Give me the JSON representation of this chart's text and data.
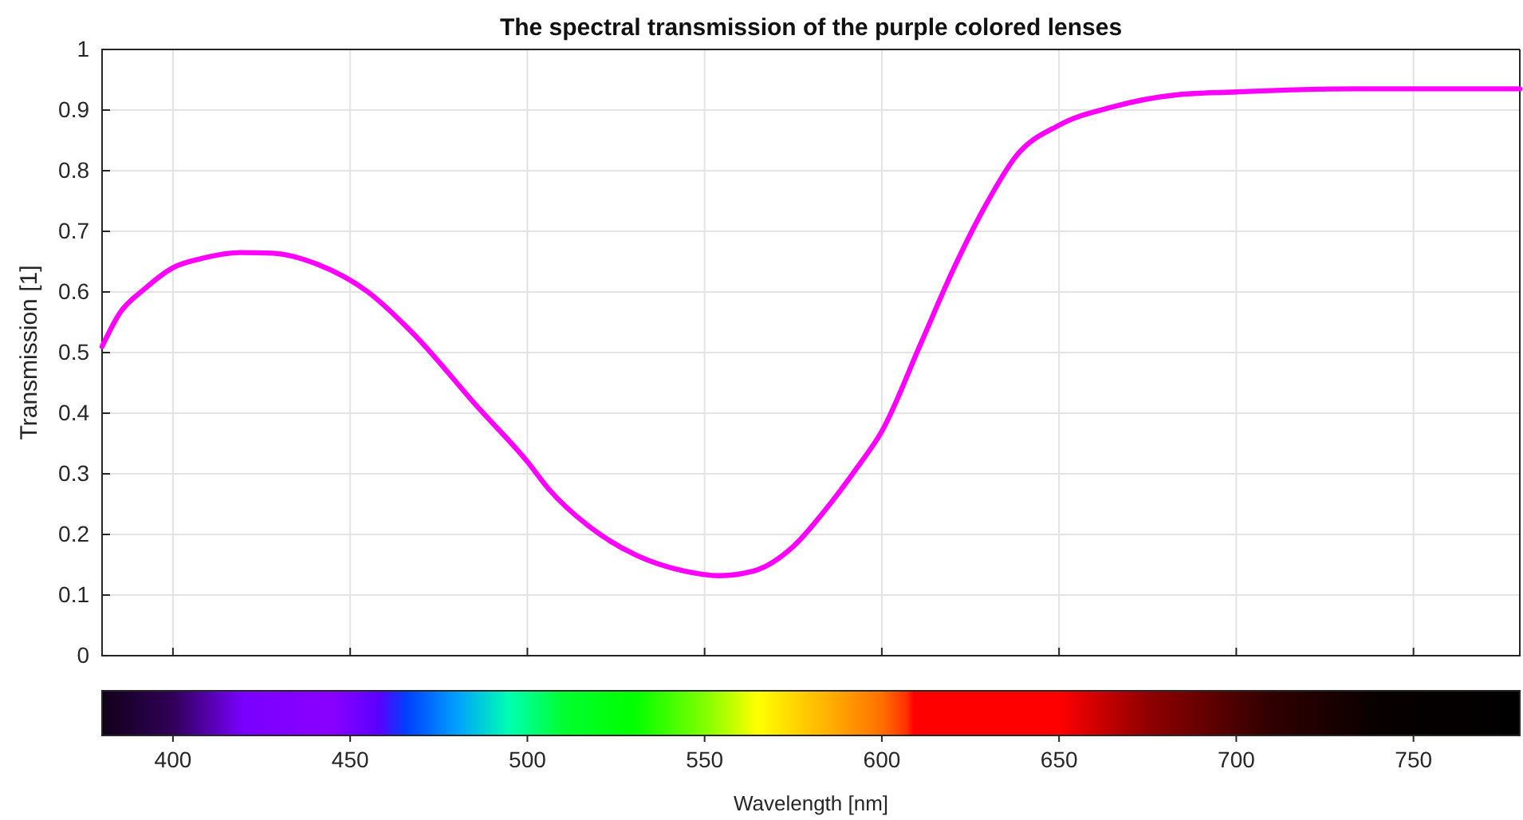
{
  "chart_data": {
    "type": "line",
    "title": "The spectral transmission of the purple colored lenses",
    "xlabel": "Wavelength [nm]",
    "ylabel": "Transmission [1]",
    "x": [
      380,
      385,
      392,
      400,
      408,
      419,
      428,
      441,
      455,
      468,
      486,
      500,
      506,
      517,
      531,
      544,
      554,
      564,
      575,
      584,
      593,
      600,
      611,
      620,
      629,
      638,
      650,
      665,
      683,
      700,
      733,
      780
    ],
    "series": [
      {
        "color": "#ff00ff",
        "values": [
          0.51,
          0.565,
          0.605,
          0.64,
          0.655,
          0.665,
          0.664,
          0.645,
          0.6,
          0.53,
          0.41,
          0.32,
          0.275,
          0.215,
          0.165,
          0.14,
          0.132,
          0.14,
          0.18,
          0.24,
          0.31,
          0.37,
          0.515,
          0.635,
          0.74,
          0.825,
          0.875,
          0.905,
          0.925,
          0.93,
          0.935,
          0.935
        ]
      }
    ],
    "xlim": [
      380,
      780
    ],
    "ylim": [
      0,
      1
    ],
    "xticks": [
      400,
      450,
      500,
      550,
      600,
      650,
      700,
      750
    ],
    "yticks": [
      0,
      {
        "value": 0.1,
        "label": "0.1"
      },
      {
        "value": 0.2,
        "label": "0.2"
      },
      {
        "value": 0.3,
        "label": "0.3"
      },
      {
        "value": 0.4,
        "label": "0.4"
      },
      {
        "value": 0.5,
        "label": "0.5"
      },
      {
        "value": 0.6,
        "label": "0.6"
      },
      {
        "value": 0.7,
        "label": "0.7"
      },
      {
        "value": 0.8,
        "label": "0.8"
      },
      {
        "value": 0.9,
        "label": "0.9"
      },
      1
    ],
    "grid": true,
    "line_style": "solid",
    "marker": "none"
  }
}
